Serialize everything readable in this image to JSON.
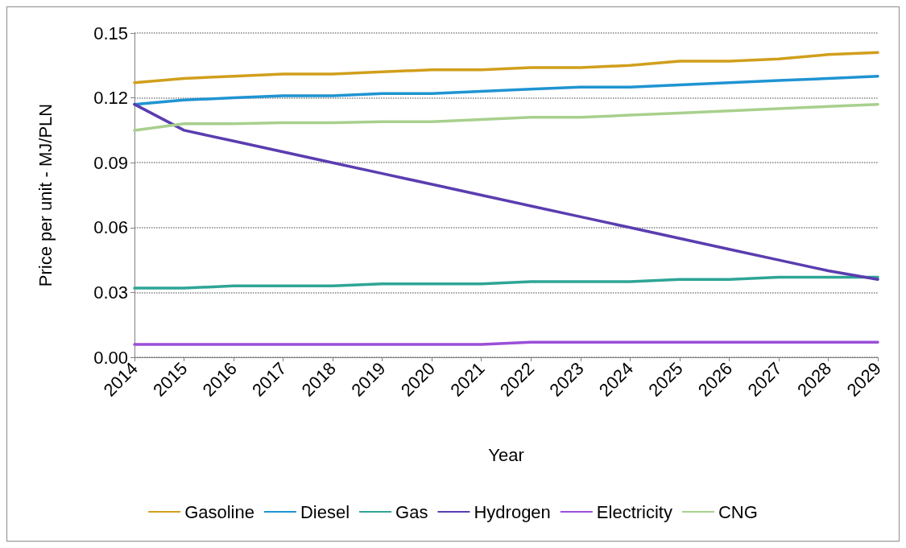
{
  "chart_data": {
    "type": "line",
    "xlabel": "Year",
    "ylabel": "Price per unit - MJ/PLN",
    "categories": [
      "2014",
      "2015",
      "2016",
      "2017",
      "2018",
      "2019",
      "2020",
      "2021",
      "2022",
      "2023",
      "2024",
      "2025",
      "2026",
      "2027",
      "2028",
      "2029"
    ],
    "ylim": [
      0,
      0.15
    ],
    "yticks": [
      {
        "value": 0,
        "label": "0.00"
      },
      0.03,
      0.06,
      0.09,
      0.12,
      0.15
    ],
    "grid": "y",
    "legend": "bottom",
    "marker": "none",
    "line_style": "solid",
    "series": [
      {
        "name": "Gasoline",
        "color": "#d19f1c",
        "values": [
          0.127,
          0.129,
          0.13,
          0.131,
          0.131,
          0.132,
          0.133,
          0.133,
          0.134,
          0.134,
          0.135,
          0.137,
          0.137,
          0.138,
          0.14,
          0.141
        ]
      },
      {
        "name": "Diesel",
        "color": "#1f94d2",
        "values": [
          0.117,
          0.119,
          0.12,
          0.121,
          0.121,
          0.122,
          0.122,
          0.123,
          0.124,
          0.125,
          0.125,
          0.126,
          0.127,
          0.128,
          0.129,
          0.13
        ]
      },
      {
        "name": "Gas",
        "color": "#2ea596",
        "values": [
          0.032,
          0.032,
          0.033,
          0.033,
          0.033,
          0.034,
          0.034,
          0.034,
          0.035,
          0.035,
          0.035,
          0.036,
          0.036,
          0.037,
          0.037,
          0.037
        ]
      },
      {
        "name": "Hydrogen",
        "color": "#5a3db0",
        "values": [
          0.117,
          0.105,
          0.1,
          0.095,
          0.09,
          0.085,
          0.08,
          0.075,
          0.07,
          0.065,
          0.06,
          0.055,
          0.05,
          0.045,
          0.04,
          0.036
        ]
      },
      {
        "name": "Electricity",
        "color": "#9a4fd8",
        "values": [
          0.006,
          0.006,
          0.006,
          0.006,
          0.006,
          0.006,
          0.006,
          0.006,
          0.007,
          0.007,
          0.007,
          0.007,
          0.007,
          0.007,
          0.007,
          0.007
        ]
      },
      {
        "name": "CNG",
        "color": "#a8d08d",
        "values": [
          0.105,
          0.108,
          0.108,
          0.1085,
          0.1085,
          0.109,
          0.109,
          0.11,
          0.111,
          0.111,
          0.112,
          0.113,
          0.114,
          0.115,
          0.116,
          0.117
        ]
      }
    ]
  }
}
